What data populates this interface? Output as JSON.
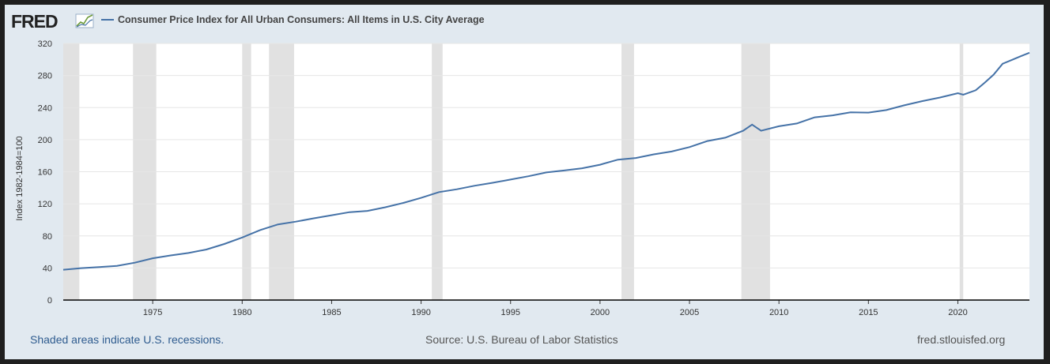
{
  "header": {
    "logo_text": "FRED",
    "series_title": "Consumer Price Index for All Urban Consumers: All Items in U.S. City Average"
  },
  "footer": {
    "note": "Shaded areas indicate U.S. recessions.",
    "source": "Source: U.S. Bureau of Labor Statistics",
    "site": "fred.stlouisfed.org"
  },
  "colors": {
    "line": "#4572a7",
    "recession": "#e1e1e1",
    "background": "#e1e9f0",
    "plot_background": "#ffffff"
  },
  "chart_data": {
    "type": "line",
    "title": "Consumer Price Index for All Urban Consumers: All Items in U.S. City Average",
    "ylabel": "Index 1982-1984=100",
    "xlabel": "",
    "xlim": [
      1970.0,
      2024.0
    ],
    "ylim": [
      0,
      320
    ],
    "y_ticks": [
      0,
      40,
      80,
      120,
      160,
      200,
      240,
      280,
      320
    ],
    "x_ticks": [
      1975,
      1980,
      1985,
      1990,
      1995,
      2000,
      2005,
      2010,
      2015,
      2020
    ],
    "grid": true,
    "recessions": [
      [
        1970.0,
        1970.9
      ],
      [
        1973.9,
        1975.2
      ],
      [
        1980.0,
        1980.5
      ],
      [
        1981.5,
        1982.9
      ],
      [
        1990.6,
        1991.2
      ],
      [
        2001.2,
        2001.9
      ],
      [
        2007.9,
        2009.5
      ],
      [
        2020.1,
        2020.3
      ]
    ],
    "series": [
      {
        "x": [
          1970.0,
          1971.0,
          1972.0,
          1973.0,
          1974.0,
          1975.0,
          1976.0,
          1977.0,
          1978.0,
          1979.0,
          1980.0,
          1981.0,
          1982.0,
          1983.0,
          1984.0,
          1985.0,
          1986.0,
          1987.0,
          1988.0,
          1989.0,
          1990.0,
          1991.0,
          1992.0,
          1993.0,
          1994.0,
          1995.0,
          1996.0,
          1997.0,
          1998.0,
          1999.0,
          2000.0,
          2001.0,
          2002.0,
          2003.0,
          2004.0,
          2005.0,
          2006.0,
          2007.0,
          2008.0,
          2008.5,
          2009.0,
          2010.0,
          2011.0,
          2012.0,
          2013.0,
          2014.0,
          2015.0,
          2016.0,
          2017.0,
          2018.0,
          2019.0,
          2020.0,
          2020.3,
          2021.0,
          2021.5,
          2022.0,
          2022.5,
          2023.0,
          2023.5,
          2024.0
        ],
        "values": [
          37.8,
          39.8,
          41.1,
          42.6,
          46.6,
          52.1,
          55.6,
          58.7,
          63.0,
          69.9,
          78.0,
          87.2,
          94.3,
          97.8,
          101.9,
          105.7,
          109.6,
          111.2,
          115.7,
          121.1,
          127.4,
          134.6,
          138.1,
          142.6,
          146.2,
          150.3,
          154.4,
          159.1,
          161.6,
          164.3,
          168.8,
          175.1,
          177.1,
          181.7,
          185.2,
          190.7,
          198.3,
          202.4,
          211.1,
          218.8,
          211.1,
          216.7,
          220.2,
          227.8,
          230.3,
          234.0,
          233.7,
          236.9,
          242.8,
          248.0,
          252.6,
          258.0,
          256.0,
          261.6,
          271.0,
          281.1,
          294.7,
          299.2,
          304.0,
          308.4
        ]
      }
    ]
  }
}
